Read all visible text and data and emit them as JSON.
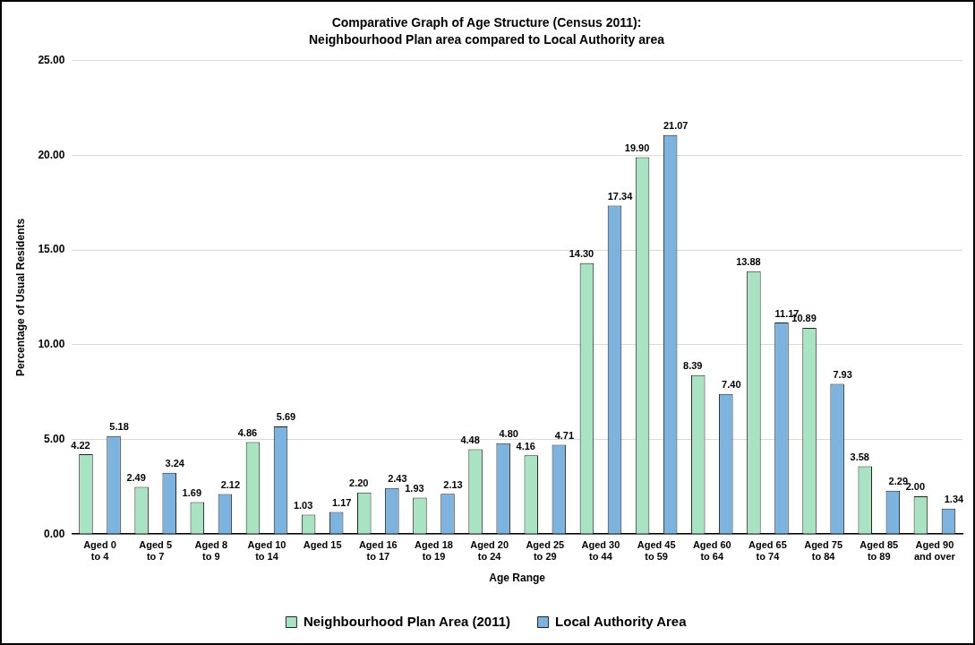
{
  "chart_data": {
    "type": "bar",
    "title": "Comparative Graph of Age Structure (Census 2011):",
    "subtitle": "Neighbourhood Plan area compared to Local Authority area",
    "xlabel": "Age Range",
    "ylabel": "Percentage of Usual Residents",
    "categories": [
      "Aged 0 to 4",
      "Aged 5 to 7",
      "Aged 8 to 9",
      "Aged 10 to 14",
      "Aged 15",
      "Aged 16 to 17",
      "Aged 18 to 19",
      "Aged 20 to 24",
      "Aged 25 to 29",
      "Aged 30 to 44",
      "Aged 45 to 59",
      "Aged 60 to 64",
      "Aged 65 to 74",
      "Aged 75 to 84",
      "Aged 85 to 89",
      "Aged 90 and over"
    ],
    "series": [
      {
        "name": "Neighbourhood Plan Area (2011)",
        "color": "#a9e4c2",
        "values": [
          4.22,
          2.49,
          1.69,
          4.86,
          1.03,
          2.2,
          1.93,
          4.48,
          4.16,
          14.3,
          19.9,
          8.39,
          13.88,
          10.89,
          3.58,
          2.0
        ],
        "value_labels": [
          "4.22",
          "2.49",
          "1.69",
          "4.86",
          "1.03",
          "2.20",
          "1.93",
          "4.48",
          "4.16",
          "14.30",
          "19.90",
          "8.39",
          "13.88",
          "10.89",
          "3.58",
          "2.00"
        ]
      },
      {
        "name": "Local Authority Area",
        "color": "#7db4df",
        "values": [
          5.18,
          3.24,
          2.12,
          5.69,
          1.17,
          2.43,
          2.13,
          4.8,
          4.71,
          17.34,
          21.07,
          7.4,
          11.17,
          7.93,
          2.29,
          1.34
        ],
        "value_labels": [
          "5.18",
          "3.24",
          "2.12",
          "5.69",
          "1.17",
          "2.43",
          "2.13",
          "4.80",
          "4.71",
          "17.34",
          "21.07",
          "7.40",
          "11.17",
          "7.93",
          "2.29",
          "1.34"
        ]
      }
    ],
    "ylim": [
      0,
      25
    ],
    "yticks": [
      {
        "value": 0,
        "label": "0.00"
      },
      {
        "value": 5,
        "label": "5.00"
      },
      {
        "value": 10,
        "label": "10.00"
      },
      {
        "value": 15,
        "label": "15.00"
      },
      {
        "value": 20,
        "label": "20.00"
      },
      {
        "value": 25,
        "label": "25.00"
      }
    ],
    "grid": "y",
    "legend": "bottom"
  }
}
